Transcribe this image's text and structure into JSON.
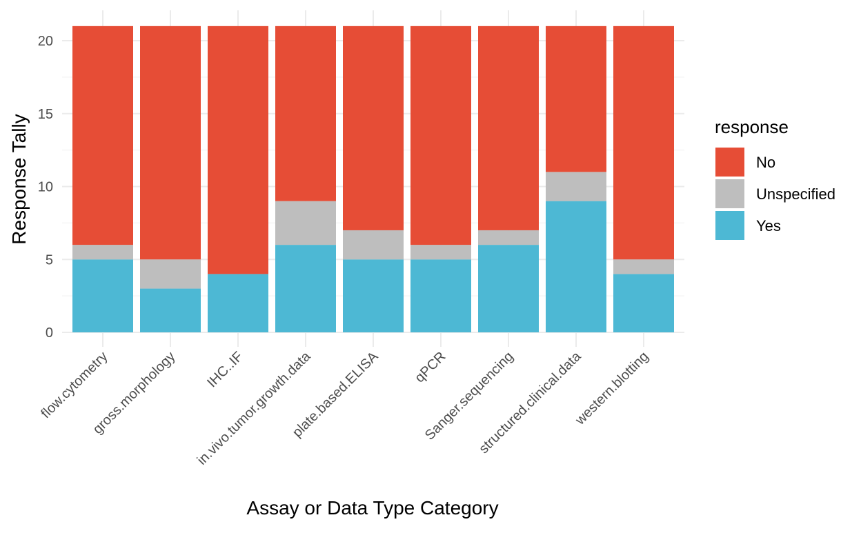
{
  "chart_data": {
    "type": "bar",
    "stacked": true,
    "categories": [
      "flow.cytometry",
      "gross.morphology",
      "IHC..IF",
      "in.vivo.tumor.growth.data",
      "plate.based.ELISA",
      "qPCR",
      "Sanger.sequencing",
      "structured.clinical.data",
      "western.blotting"
    ],
    "series": [
      {
        "name": "Yes",
        "color": "#4db8d4",
        "values": [
          5,
          3,
          4,
          6,
          5,
          5,
          6,
          9,
          4
        ]
      },
      {
        "name": "Unspecified",
        "color": "#bebebe",
        "values": [
          1,
          2,
          0,
          3,
          2,
          1,
          1,
          2,
          1
        ]
      },
      {
        "name": "No",
        "color": "#e64d36",
        "values": [
          15,
          16,
          17,
          12,
          14,
          15,
          14,
          10,
          16
        ]
      }
    ],
    "legend_order": [
      "No",
      "Unspecified",
      "Yes"
    ],
    "xlabel": "Assay or Data Type Category",
    "ylabel": "Response Tally",
    "legend_title": "response",
    "ylim": [
      0,
      21
    ],
    "yticks": [
      0,
      5,
      10,
      15,
      20
    ],
    "grid": true,
    "legend_position": "right"
  }
}
